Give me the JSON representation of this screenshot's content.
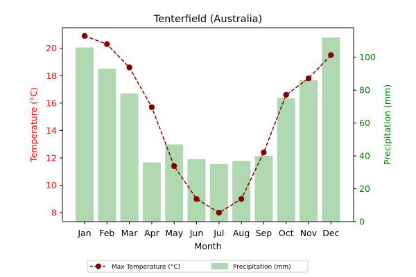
{
  "chart_data": {
    "type": "bar+line",
    "title": "Tenterfield (Australia)",
    "xlabel": "Month",
    "categories": [
      "Jan",
      "Feb",
      "Mar",
      "Apr",
      "May",
      "Jun",
      "Jul",
      "Aug",
      "Sep",
      "Oct",
      "Nov",
      "Dec"
    ],
    "left_axis": {
      "label": "Temperature (°C)",
      "color": "#ff0000",
      "ylim": [
        7.35,
        21.5
      ],
      "ticks": [
        "8",
        "10",
        "12",
        "14",
        "16",
        "18",
        "20"
      ]
    },
    "right_axis": {
      "label": "Precipitation (mm)",
      "color": "#008000",
      "ylim": [
        0,
        118
      ],
      "ticks": [
        "0",
        "20",
        "40",
        "60",
        "80",
        "100"
      ]
    },
    "series": [
      {
        "name": "Precipitation (mm)",
        "kind": "bar",
        "axis": "right",
        "color": "#b0d8b0",
        "values": [
          106,
          93,
          78,
          36,
          47,
          38,
          35,
          37,
          40,
          75,
          86,
          112
        ]
      },
      {
        "name": "Max Temperature (°C)",
        "kind": "line",
        "axis": "left",
        "color": "#800000",
        "values": [
          20.9,
          20.3,
          18.6,
          15.7,
          11.4,
          9.0,
          8.0,
          9.0,
          12.4,
          16.6,
          17.8,
          19.5
        ]
      }
    ],
    "legend": {
      "placement": "bottom-center",
      "items": [
        "Max Temperature (°C)",
        "Precipitation (mm)"
      ]
    },
    "grid": false
  }
}
